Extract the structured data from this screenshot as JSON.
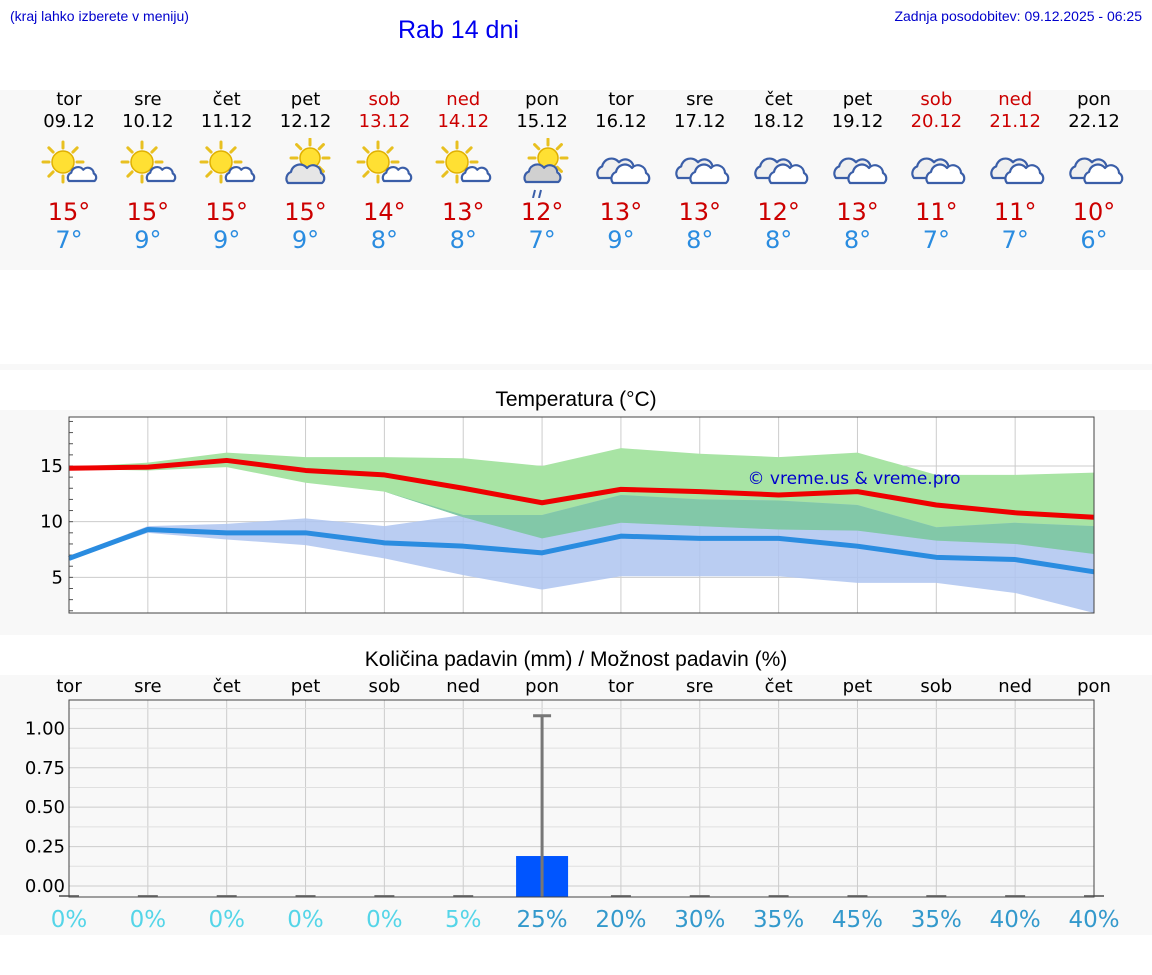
{
  "header": {
    "hint": "(kraj lahko izberete v meniju)",
    "title": "Rab 14 dni",
    "updated": "Zadnja posodobitev: 09.12.2025 - 06:25"
  },
  "days": [
    {
      "name": "tor",
      "date": "09.12",
      "icon": "partly-sunny-icon",
      "max": "15°",
      "min": "7°",
      "weekend": false
    },
    {
      "name": "sre",
      "date": "10.12",
      "icon": "partly-sunny-icon",
      "max": "15°",
      "min": "9°",
      "weekend": false
    },
    {
      "name": "čet",
      "date": "11.12",
      "icon": "partly-sunny-icon",
      "max": "15°",
      "min": "9°",
      "weekend": false
    },
    {
      "name": "pet",
      "date": "12.12",
      "icon": "sun-behind-cloud-icon",
      "max": "15°",
      "min": "9°",
      "weekend": false
    },
    {
      "name": "sob",
      "date": "13.12",
      "icon": "partly-sunny-icon",
      "max": "14°",
      "min": "8°",
      "weekend": true
    },
    {
      "name": "ned",
      "date": "14.12",
      "icon": "partly-sunny-icon",
      "max": "13°",
      "min": "8°",
      "weekend": true
    },
    {
      "name": "pon",
      "date": "15.12",
      "icon": "sun-cloud-rain-icon",
      "max": "12°",
      "min": "7°",
      "weekend": false
    },
    {
      "name": "tor",
      "date": "16.12",
      "icon": "cloudy-icon",
      "max": "13°",
      "min": "9°",
      "weekend": false
    },
    {
      "name": "sre",
      "date": "17.12",
      "icon": "cloudy-icon",
      "max": "13°",
      "min": "8°",
      "weekend": false
    },
    {
      "name": "čet",
      "date": "18.12",
      "icon": "cloudy-icon",
      "max": "12°",
      "min": "8°",
      "weekend": false
    },
    {
      "name": "pet",
      "date": "19.12",
      "icon": "cloudy-icon",
      "max": "13°",
      "min": "8°",
      "weekend": false
    },
    {
      "name": "sob",
      "date": "20.12",
      "icon": "cloudy-icon",
      "max": "11°",
      "min": "7°",
      "weekend": true
    },
    {
      "name": "ned",
      "date": "21.12",
      "icon": "cloudy-icon",
      "max": "11°",
      "min": "7°",
      "weekend": true
    },
    {
      "name": "pon",
      "date": "22.12",
      "icon": "cloudy-icon",
      "max": "10°",
      "min": "6°",
      "weekend": false
    }
  ],
  "colors": {
    "max": "#ee0000",
    "min": "#2a8ce0",
    "max_band": "#a8e4a4",
    "min_band": "#aec4f0",
    "overlap": "#82c8a8",
    "bar": "#0055ff",
    "error": "#777777",
    "grid": "#cccccc",
    "pop_low": "#55d5e8",
    "pop_high": "#3399cc"
  },
  "chart_data": [
    {
      "type": "line",
      "title": "Temperatura (°C)",
      "watermark": "© vreme.us & vreme.pro",
      "ylim": [
        1.8,
        19.4
      ],
      "yticks": [
        5,
        10,
        15
      ],
      "x": [
        0,
        1,
        2,
        3,
        4,
        5,
        6,
        7,
        8,
        9,
        10,
        11,
        12,
        13
      ],
      "series": [
        {
          "name": "max",
          "values": [
            14.8,
            14.9,
            15.5,
            14.6,
            14.2,
            13.0,
            11.7,
            12.9,
            12.7,
            12.4,
            12.7,
            11.5,
            10.8,
            10.4
          ]
        },
        {
          "name": "min",
          "values": [
            6.7,
            9.3,
            9.0,
            9.0,
            8.1,
            7.8,
            7.2,
            8.7,
            8.5,
            8.5,
            7.8,
            6.8,
            6.6,
            5.5
          ]
        }
      ],
      "bands": [
        {
          "name": "max range",
          "lower": [
            14.7,
            14.6,
            14.9,
            13.5,
            12.7,
            10.4,
            8.5,
            9.9,
            9.6,
            9.3,
            9.2,
            8.3,
            8.0,
            7.1
          ],
          "upper": [
            14.9,
            15.3,
            16.2,
            15.8,
            15.8,
            15.7,
            15.0,
            16.6,
            16.1,
            15.8,
            16.2,
            14.2,
            14.2,
            14.4
          ]
        },
        {
          "name": "min range",
          "lower": [
            6.6,
            9.0,
            8.4,
            7.9,
            6.7,
            5.2,
            3.9,
            5.1,
            5.1,
            5.1,
            4.5,
            4.5,
            3.6,
            1.8
          ],
          "upper": [
            6.9,
            9.6,
            9.8,
            10.3,
            9.6,
            10.6,
            10.6,
            12.4,
            12.0,
            11.9,
            11.5,
            9.5,
            9.9,
            9.6
          ]
        }
      ]
    },
    {
      "type": "bar",
      "title": "Količina padavin (mm) / Možnost padavin (%)",
      "categories": [
        "tor",
        "sre",
        "čet",
        "pet",
        "sob",
        "ned",
        "pon",
        "tor",
        "sre",
        "čet",
        "pet",
        "sob",
        "ned",
        "pon"
      ],
      "values": [
        0,
        0,
        0,
        0,
        0,
        0,
        0.19,
        0,
        0,
        0,
        0,
        0,
        0,
        0
      ],
      "error_max": [
        0,
        0,
        0,
        0,
        0,
        0,
        1.08,
        0,
        0,
        0,
        0,
        0,
        0,
        0
      ],
      "probability": [
        "0%",
        "0%",
        "0%",
        "0%",
        "0%",
        "5%",
        "25%",
        "20%",
        "30%",
        "35%",
        "45%",
        "35%",
        "40%",
        "40%"
      ],
      "ylim": [
        -0.07,
        1.18
      ],
      "yticks": [
        0.0,
        0.25,
        0.5,
        0.75,
        1.0
      ],
      "ytick_labels": [
        "0.00",
        "0.25",
        "0.50",
        "0.75",
        "1.00"
      ]
    }
  ]
}
